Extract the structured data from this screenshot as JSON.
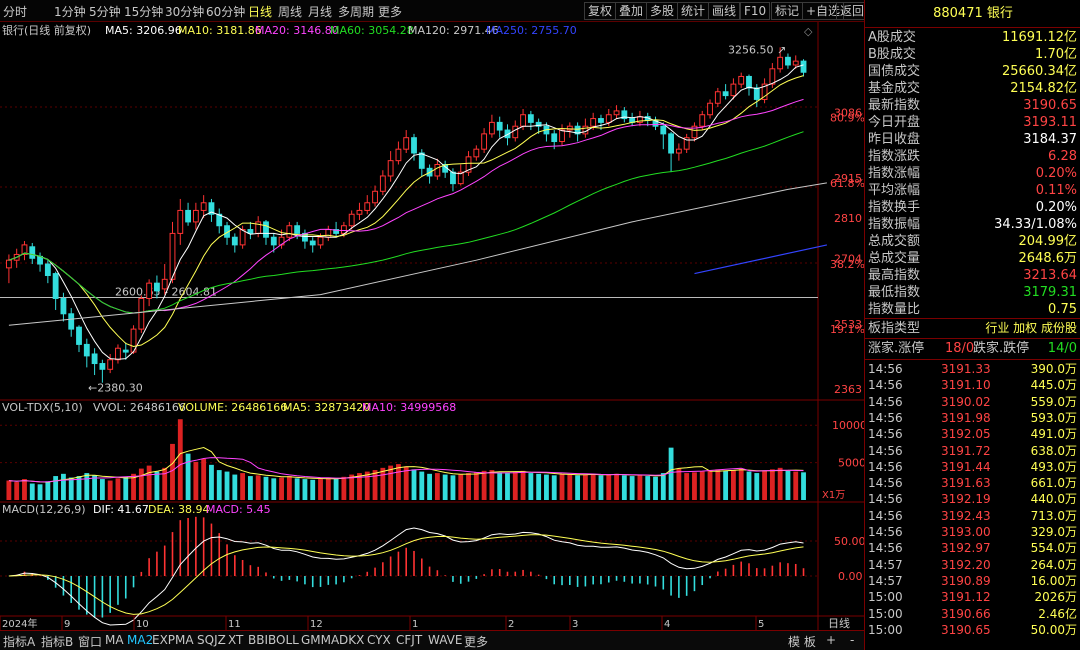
{
  "toolbar": {
    "tabs": [
      "分时",
      "1分钟",
      "5分钟",
      "15分钟",
      "30分钟",
      "60分钟",
      "日线",
      "周线",
      "月线",
      "多周期",
      "更多"
    ],
    "active": "日线",
    "right": [
      "复权",
      "叠加",
      "多股",
      "统计",
      "画线",
      "F10",
      "标记",
      "+自选",
      "返回"
    ]
  },
  "chart_data": {
    "type": "candlestick",
    "title": "银行(日线 前复权)",
    "ma": {
      "labels": [
        "MA5: 3206.96",
        "MA10: 3181.86",
        "MA20: 3146.80",
        "MA60: 3054.28",
        "MA120: 2971.46",
        "MA250: 2755.70"
      ],
      "colors": [
        "#ffffff",
        "#ffff55",
        "#ff44ff",
        "#22dd22",
        "#c8c8c8",
        "#3344ff"
      ]
    },
    "price_ticks": [
      "3086",
      "2915",
      "2810",
      "2704",
      "2533",
      "2363"
    ],
    "fib_labels": [
      "80.9%",
      "61.8%",
      "38.2%",
      "19.1%"
    ],
    "annotations": {
      "high": "3256.50",
      "low": "2380.30",
      "range": "2600.65 - 2604.81"
    },
    "x_labels": [
      "2024年",
      "9",
      "10",
      "11",
      "12",
      "1",
      "2",
      "3",
      "4",
      "5"
    ],
    "ylim": [
      2340,
      3270
    ],
    "candles": [
      [
        2680,
        2700,
        2640,
        2715
      ],
      [
        2700,
        2715,
        2680,
        2730
      ],
      [
        2715,
        2740,
        2700,
        2750
      ],
      [
        2735,
        2705,
        2690,
        2745
      ],
      [
        2710,
        2690,
        2670,
        2720
      ],
      [
        2690,
        2660,
        2640,
        2700
      ],
      [
        2665,
        2600,
        2570,
        2670
      ],
      [
        2600,
        2560,
        2540,
        2615
      ],
      [
        2560,
        2520,
        2500,
        2575
      ],
      [
        2525,
        2480,
        2460,
        2530
      ],
      [
        2480,
        2450,
        2420,
        2495
      ],
      [
        2455,
        2430,
        2400,
        2470
      ],
      [
        2430,
        2415,
        2380,
        2440
      ],
      [
        2415,
        2440,
        2405,
        2455
      ],
      [
        2440,
        2470,
        2430,
        2480
      ],
      [
        2465,
        2460,
        2440,
        2485
      ],
      [
        2460,
        2520,
        2455,
        2530
      ],
      [
        2520,
        2600,
        2510,
        2608
      ],
      [
        2600,
        2640,
        2580,
        2650
      ],
      [
        2640,
        2620,
        2600,
        2660
      ],
      [
        2625,
        2650,
        2610,
        2690
      ],
      [
        2650,
        2770,
        2640,
        2800
      ],
      [
        2770,
        2830,
        2740,
        2860
      ],
      [
        2830,
        2800,
        2790,
        2850
      ],
      [
        2800,
        2830,
        2780,
        2850
      ],
      [
        2830,
        2850,
        2810,
        2870
      ],
      [
        2850,
        2820,
        2800,
        2860
      ],
      [
        2820,
        2790,
        2770,
        2835
      ],
      [
        2790,
        2760,
        2740,
        2800
      ],
      [
        2760,
        2740,
        2720,
        2770
      ],
      [
        2740,
        2780,
        2730,
        2790
      ],
      [
        2780,
        2770,
        2755,
        2800
      ],
      [
        2770,
        2800,
        2760,
        2815
      ],
      [
        2800,
        2760,
        2740,
        2805
      ],
      [
        2760,
        2740,
        2720,
        2770
      ],
      [
        2740,
        2760,
        2730,
        2780
      ],
      [
        2760,
        2790,
        2750,
        2800
      ],
      [
        2790,
        2770,
        2755,
        2800
      ],
      [
        2770,
        2750,
        2730,
        2780
      ],
      [
        2750,
        2740,
        2720,
        2760
      ],
      [
        2740,
        2760,
        2730,
        2770
      ],
      [
        2760,
        2780,
        2750,
        2790
      ],
      [
        2780,
        2770,
        2760,
        2800
      ],
      [
        2770,
        2790,
        2760,
        2800
      ],
      [
        2790,
        2820,
        2780,
        2830
      ],
      [
        2820,
        2830,
        2805,
        2850
      ],
      [
        2830,
        2850,
        2820,
        2870
      ],
      [
        2850,
        2880,
        2840,
        2895
      ],
      [
        2880,
        2920,
        2870,
        2935
      ],
      [
        2920,
        2960,
        2905,
        2985
      ],
      [
        2960,
        2990,
        2950,
        3010
      ],
      [
        2990,
        3020,
        2980,
        3040
      ],
      [
        3020,
        2980,
        2960,
        3030
      ],
      [
        2980,
        2940,
        2920,
        2990
      ],
      [
        2940,
        2920,
        2900,
        2950
      ],
      [
        2920,
        2950,
        2910,
        2965
      ],
      [
        2950,
        2930,
        2915,
        2960
      ],
      [
        2930,
        2900,
        2880,
        2940
      ],
      [
        2900,
        2930,
        2895,
        2950
      ],
      [
        2930,
        2970,
        2920,
        2985
      ],
      [
        2970,
        2990,
        2960,
        3000
      ],
      [
        2990,
        3030,
        2980,
        3045
      ],
      [
        3030,
        3060,
        3020,
        3080
      ],
      [
        3060,
        3040,
        3020,
        3075
      ],
      [
        3040,
        3020,
        3000,
        3055
      ],
      [
        3020,
        3050,
        3010,
        3065
      ],
      [
        3050,
        3080,
        3040,
        3095
      ],
      [
        3080,
        3060,
        3040,
        3090
      ],
      [
        3060,
        3050,
        3030,
        3070
      ],
      [
        3050,
        3030,
        3010,
        3060
      ],
      [
        3030,
        3010,
        2990,
        3040
      ],
      [
        3010,
        3040,
        3000,
        3055
      ],
      [
        3040,
        3050,
        3020,
        3060
      ],
      [
        3050,
        3030,
        3010,
        3060
      ],
      [
        3030,
        3050,
        3020,
        3070
      ],
      [
        3050,
        3070,
        3040,
        3085
      ],
      [
        3070,
        3060,
        3040,
        3080
      ],
      [
        3060,
        3080,
        3050,
        3095
      ],
      [
        3080,
        3090,
        3070,
        3105
      ],
      [
        3090,
        3070,
        3060,
        3100
      ],
      [
        3070,
        3060,
        3050,
        3085
      ],
      [
        3060,
        3075,
        3050,
        3090
      ],
      [
        3075,
        3065,
        3050,
        3085
      ],
      [
        3065,
        3050,
        3040,
        3075
      ],
      [
        3050,
        3030,
        2990,
        3060
      ],
      [
        3030,
        2980,
        2930,
        3035
      ],
      [
        2980,
        2990,
        2960,
        3005
      ],
      [
        2990,
        3020,
        2980,
        3030
      ],
      [
        3020,
        3050,
        3010,
        3060
      ],
      [
        3050,
        3080,
        3040,
        3090
      ],
      [
        3080,
        3110,
        3070,
        3120
      ],
      [
        3110,
        3140,
        3100,
        3150
      ],
      [
        3140,
        3130,
        3120,
        3160
      ],
      [
        3130,
        3160,
        3120,
        3175
      ],
      [
        3160,
        3180,
        3150,
        3190
      ],
      [
        3180,
        3150,
        3130,
        3185
      ],
      [
        3150,
        3120,
        3100,
        3160
      ],
      [
        3120,
        3160,
        3110,
        3175
      ],
      [
        3160,
        3200,
        3150,
        3215
      ],
      [
        3200,
        3230,
        3190,
        3256
      ],
      [
        3230,
        3210,
        3200,
        3240
      ],
      [
        3210,
        3220,
        3200,
        3235
      ],
      [
        3220,
        3191,
        3180,
        3225
      ]
    ],
    "volume": {
      "label": "VOL-TDX(5,10)",
      "vvol": "VVOL: 26486166",
      "volume": "VOLUME: 26486166",
      "ma5": "MA5: 32873420",
      "ma10": "MA10: 34999568",
      "ticks": [
        "10000",
        "5000"
      ],
      "unit": "X1万",
      "values": [
        2600,
        2400,
        2800,
        2200,
        2100,
        2500,
        3200,
        3500,
        3000,
        3200,
        3600,
        3300,
        2800,
        2600,
        2900,
        3100,
        3500,
        4200,
        4600,
        3800,
        4300,
        7500,
        10800,
        6200,
        5100,
        5500,
        4700,
        4000,
        3800,
        3400,
        3600,
        3200,
        3300,
        3100,
        2900,
        3000,
        3200,
        2900,
        2800,
        2700,
        2800,
        3000,
        2900,
        3100,
        3400,
        3600,
        3800,
        4000,
        4300,
        4600,
        4800,
        4500,
        4100,
        3800,
        3500,
        3600,
        3400,
        3300,
        3400,
        3600,
        3700,
        3900,
        4000,
        3700,
        3600,
        3800,
        3900,
        3600,
        3500,
        3400,
        3300,
        3500,
        3400,
        3300,
        3400,
        3500,
        3300,
        3400,
        3500,
        3300,
        3200,
        3300,
        3200,
        3100,
        3600,
        7000,
        4200,
        3600,
        3700,
        3800,
        4000,
        4100,
        3900,
        4000,
        4200,
        3800,
        3600,
        3900,
        4100,
        4300,
        3900,
        3800,
        3700
      ]
    },
    "macd": {
      "label": "MACD(12,26,9)",
      "dif": "DIF: 41.67",
      "dea": "DEA: 38.94",
      "macd": "MACD: 5.45",
      "ticks": [
        "50.00",
        "0.00"
      ]
    }
  },
  "bottombar": {
    "items": [
      "指标A",
      "指标B",
      "窗口",
      "MA",
      "MA2",
      "EXPMA",
      "SQJZ",
      "XT",
      "BBIBOLL",
      "GMMA",
      "DKX",
      "CYX",
      "CFJT",
      "WAVE",
      "更多"
    ],
    "active": "MA2",
    "right": [
      "模 板",
      "+",
      "-"
    ],
    "period": "日线"
  },
  "side": {
    "title": "880471 银行",
    "stats": [
      [
        "A股成交",
        "11691.12亿",
        "#ffff55"
      ],
      [
        "B股成交",
        "1.70亿",
        "#ffff55"
      ],
      [
        "国债成交",
        "25660.34亿",
        "#ffff55"
      ],
      [
        "基金成交",
        "2154.82亿",
        "#ffff55"
      ],
      [
        "最新指数",
        "3190.65",
        "#ff4444"
      ],
      [
        "今日开盘",
        "3193.11",
        "#ff4444"
      ],
      [
        "昨日收盘",
        "3184.37",
        "#ffffff"
      ],
      [
        "指数涨跌",
        "6.28",
        "#ff4444"
      ],
      [
        "指数涨幅",
        "0.20%",
        "#ff4444"
      ],
      [
        "平均涨幅",
        "0.11%",
        "#ff4444"
      ],
      [
        "指数换手",
        "0.20%",
        "#ffffff"
      ],
      [
        "指数振幅",
        "34.33/1.08%",
        "#ffffff"
      ],
      [
        "总成交额",
        "204.99亿",
        "#ffff55"
      ],
      [
        "总成交量",
        "2648.6万",
        "#ffff55"
      ],
      [
        "最高指数",
        "3213.64",
        "#ff4444"
      ],
      [
        "最低指数",
        "3179.31",
        "#22dd22"
      ],
      [
        "指数量比",
        "0.75",
        "#ffff55"
      ]
    ],
    "index_type": "板指类型",
    "index_type_vals": "行业 加权 成份股",
    "updown": {
      "up_label": "涨家.涨停",
      "up_val": "18/0",
      "down_label": "跌家.跌停",
      "down_val": "14/0"
    },
    "ticks": [
      [
        "14:56",
        "3191.33",
        "390.0万"
      ],
      [
        "14:56",
        "3191.10",
        "445.0万"
      ],
      [
        "14:56",
        "3190.02",
        "559.0万"
      ],
      [
        "14:56",
        "3191.98",
        "593.0万"
      ],
      [
        "14:56",
        "3192.05",
        "491.0万"
      ],
      [
        "14:56",
        "3191.72",
        "638.0万"
      ],
      [
        "14:56",
        "3191.44",
        "493.0万"
      ],
      [
        "14:56",
        "3191.63",
        "661.0万"
      ],
      [
        "14:56",
        "3192.19",
        "440.0万"
      ],
      [
        "14:56",
        "3192.43",
        "713.0万"
      ],
      [
        "14:56",
        "3193.00",
        "329.0万"
      ],
      [
        "14:56",
        "3192.97",
        "554.0万"
      ],
      [
        "14:57",
        "3192.20",
        "264.0万"
      ],
      [
        "14:57",
        "3190.89",
        "16.00万"
      ],
      [
        "15:00",
        "3191.12",
        "2026万"
      ],
      [
        "15:00",
        "3190.66",
        "2.46亿"
      ],
      [
        "15:00",
        "3190.65",
        "50.00万"
      ]
    ]
  }
}
